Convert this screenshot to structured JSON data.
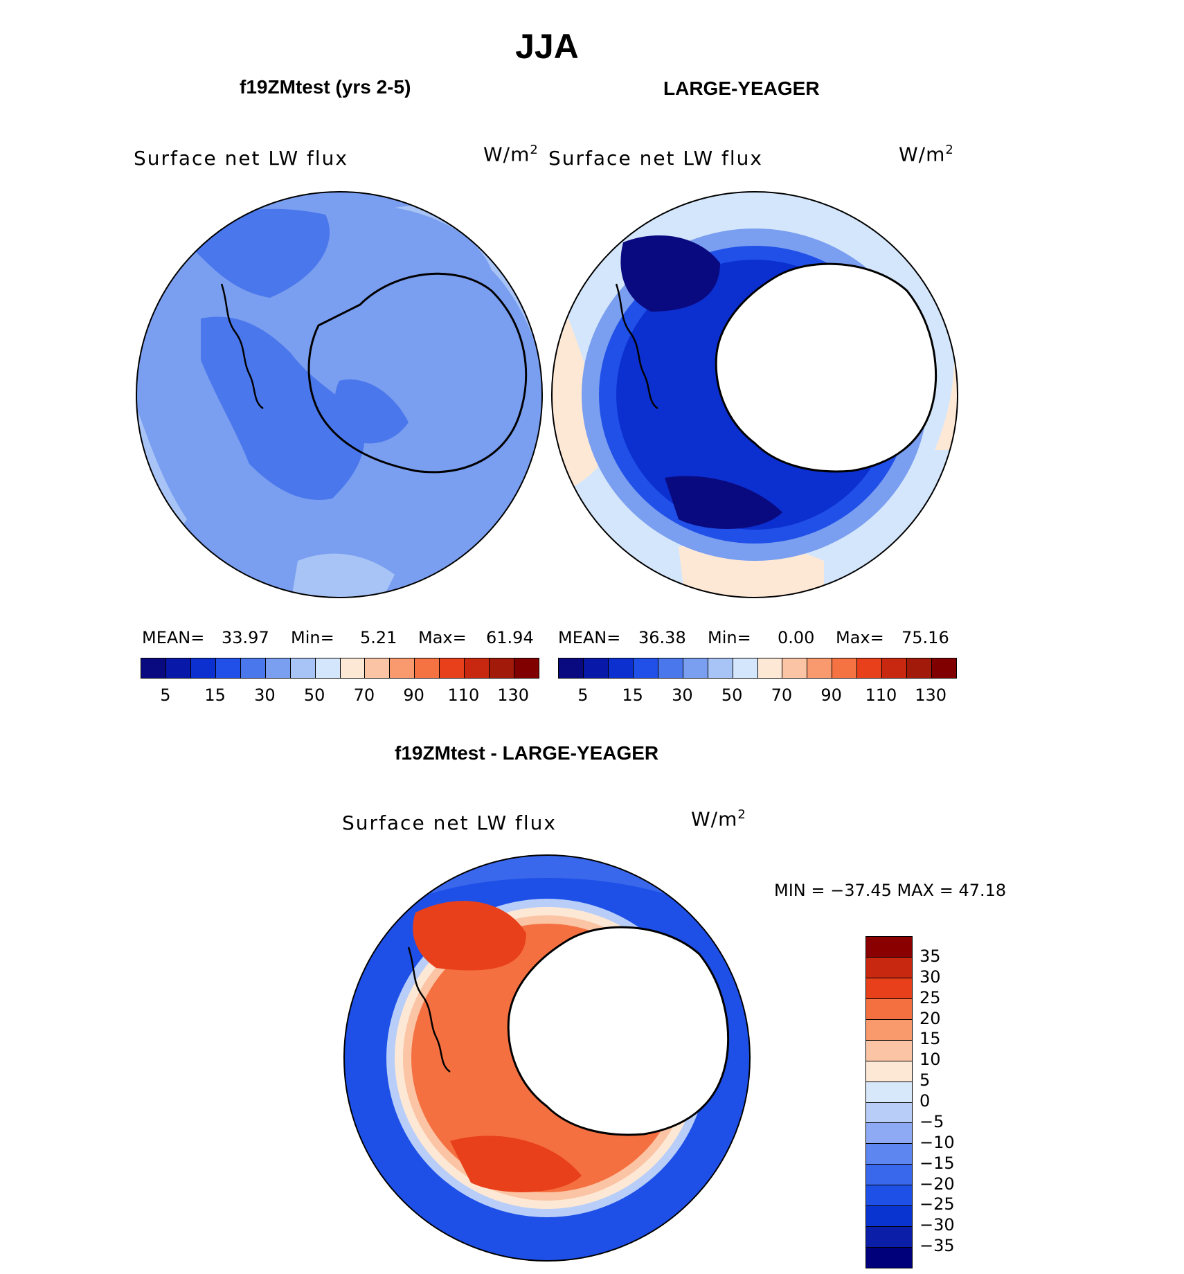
{
  "title": "JJA",
  "panels": {
    "left": {
      "case_title": "f19ZMtest (yrs 2-5)",
      "variable": "Surface net LW flux",
      "units_base": "W/m",
      "units_exp": "2",
      "mean_label": "MEAN=",
      "mean_value": "33.97",
      "min_label": "Min=",
      "min_value": "5.21",
      "max_label": "Max=",
      "max_value": "61.94"
    },
    "right": {
      "case_title": "LARGE-YEAGER",
      "variable": "Surface net LW flux",
      "units_base": "W/m",
      "units_exp": "2",
      "mean_label": "MEAN=",
      "mean_value": "36.38",
      "min_label": "Min=",
      "min_value": "0.00",
      "max_label": "Max=",
      "max_value": "75.16"
    },
    "diff": {
      "case_title": "f19ZMtest - LARGE-YEAGER",
      "variable": "Surface net LW flux",
      "units_base": "W/m",
      "units_exp": "2",
      "minmax_text": "MIN = −37.45 MAX =   47.18"
    }
  },
  "chart_data": [
    {
      "type": "heatmap",
      "projection": "polar-stereographic-south",
      "title": "f19ZMtest (yrs 2-5)",
      "variable": "Surface net LW flux",
      "units": "W/m2",
      "mean": 33.97,
      "min": 5.21,
      "max": 61.94,
      "levels": [
        5,
        10,
        15,
        20,
        30,
        40,
        50,
        60,
        70,
        80,
        90,
        100,
        110,
        120,
        130
      ],
      "tick_labels": [
        "5",
        "15",
        "30",
        "50",
        "70",
        "90",
        "110",
        "130"
      ]
    },
    {
      "type": "heatmap",
      "projection": "polar-stereographic-south",
      "title": "LARGE-YEAGER",
      "variable": "Surface net LW flux",
      "units": "W/m2",
      "mean": 36.38,
      "min": 0.0,
      "max": 75.16,
      "levels": [
        5,
        10,
        15,
        20,
        30,
        40,
        50,
        60,
        70,
        80,
        90,
        100,
        110,
        120,
        130
      ],
      "tick_labels": [
        "5",
        "15",
        "30",
        "50",
        "70",
        "90",
        "110",
        "130"
      ]
    },
    {
      "type": "heatmap",
      "projection": "polar-stereographic-south",
      "title": "f19ZMtest - LARGE-YEAGER",
      "variable": "Surface net LW flux",
      "units": "W/m2",
      "min": -37.45,
      "max": 47.18,
      "levels": [
        -35,
        -30,
        -25,
        -20,
        -15,
        -10,
        -5,
        0,
        5,
        10,
        15,
        20,
        25,
        30,
        35
      ],
      "tick_labels": [
        "−35",
        "−30",
        "−25",
        "−20",
        "−15",
        "−10",
        "−5",
        "0",
        "5",
        "10",
        "15",
        "20",
        "25",
        "30",
        "35"
      ]
    }
  ],
  "colors": {
    "abs_scale": [
      "#0a0a80",
      "#0818a8",
      "#0c30d0",
      "#2050e8",
      "#4a78ec",
      "#7a9ef0",
      "#a8c4f6",
      "#d4e6fb",
      "#fde8d6",
      "#fbc4a4",
      "#f99a6e",
      "#f57242",
      "#e8401a",
      "#c82810",
      "#a21a0a",
      "#800000"
    ],
    "diff_scale": [
      "#00007a",
      "#0a1ea8",
      "#0a34d0",
      "#1e50e8",
      "#3a68ec",
      "#5e86f0",
      "#8eaaf4",
      "#b8cef8",
      "#d8e8fb",
      "#fde8d6",
      "#fbc4a4",
      "#f89a6c",
      "#f57040",
      "#e8401a",
      "#c82810",
      "#8a0000"
    ],
    "coastline": "#000000"
  }
}
